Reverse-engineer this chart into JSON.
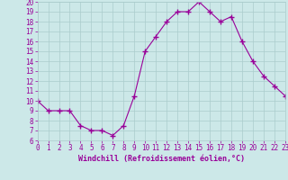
{
  "x": [
    0,
    1,
    2,
    3,
    4,
    5,
    6,
    7,
    8,
    9,
    10,
    11,
    12,
    13,
    14,
    15,
    16,
    17,
    18,
    19,
    20,
    21,
    22,
    23
  ],
  "y": [
    10,
    9,
    9,
    9,
    7.5,
    7,
    7,
    6.5,
    7.5,
    10.5,
    15,
    16.5,
    18,
    19,
    19,
    20,
    19,
    18,
    18.5,
    16,
    14,
    12.5,
    11.5,
    10.5
  ],
  "line_color": "#990099",
  "marker": "+",
  "marker_size": 4,
  "marker_linewidth": 1.0,
  "background_color": "#cce8e8",
  "grid_color": "#aacccc",
  "xlabel": "Windchill (Refroidissement éolien,°C)",
  "xlabel_color": "#990099",
  "tick_color": "#990099",
  "ylim": [
    6,
    20
  ],
  "xlim": [
    0,
    23
  ],
  "yticks": [
    6,
    7,
    8,
    9,
    10,
    11,
    12,
    13,
    14,
    15,
    16,
    17,
    18,
    19,
    20
  ],
  "xticks": [
    0,
    1,
    2,
    3,
    4,
    5,
    6,
    7,
    8,
    9,
    10,
    11,
    12,
    13,
    14,
    15,
    16,
    17,
    18,
    19,
    20,
    21,
    22,
    23
  ],
  "axis_label_fontsize": 6.0,
  "tick_fontsize": 5.5,
  "line_width": 0.8
}
